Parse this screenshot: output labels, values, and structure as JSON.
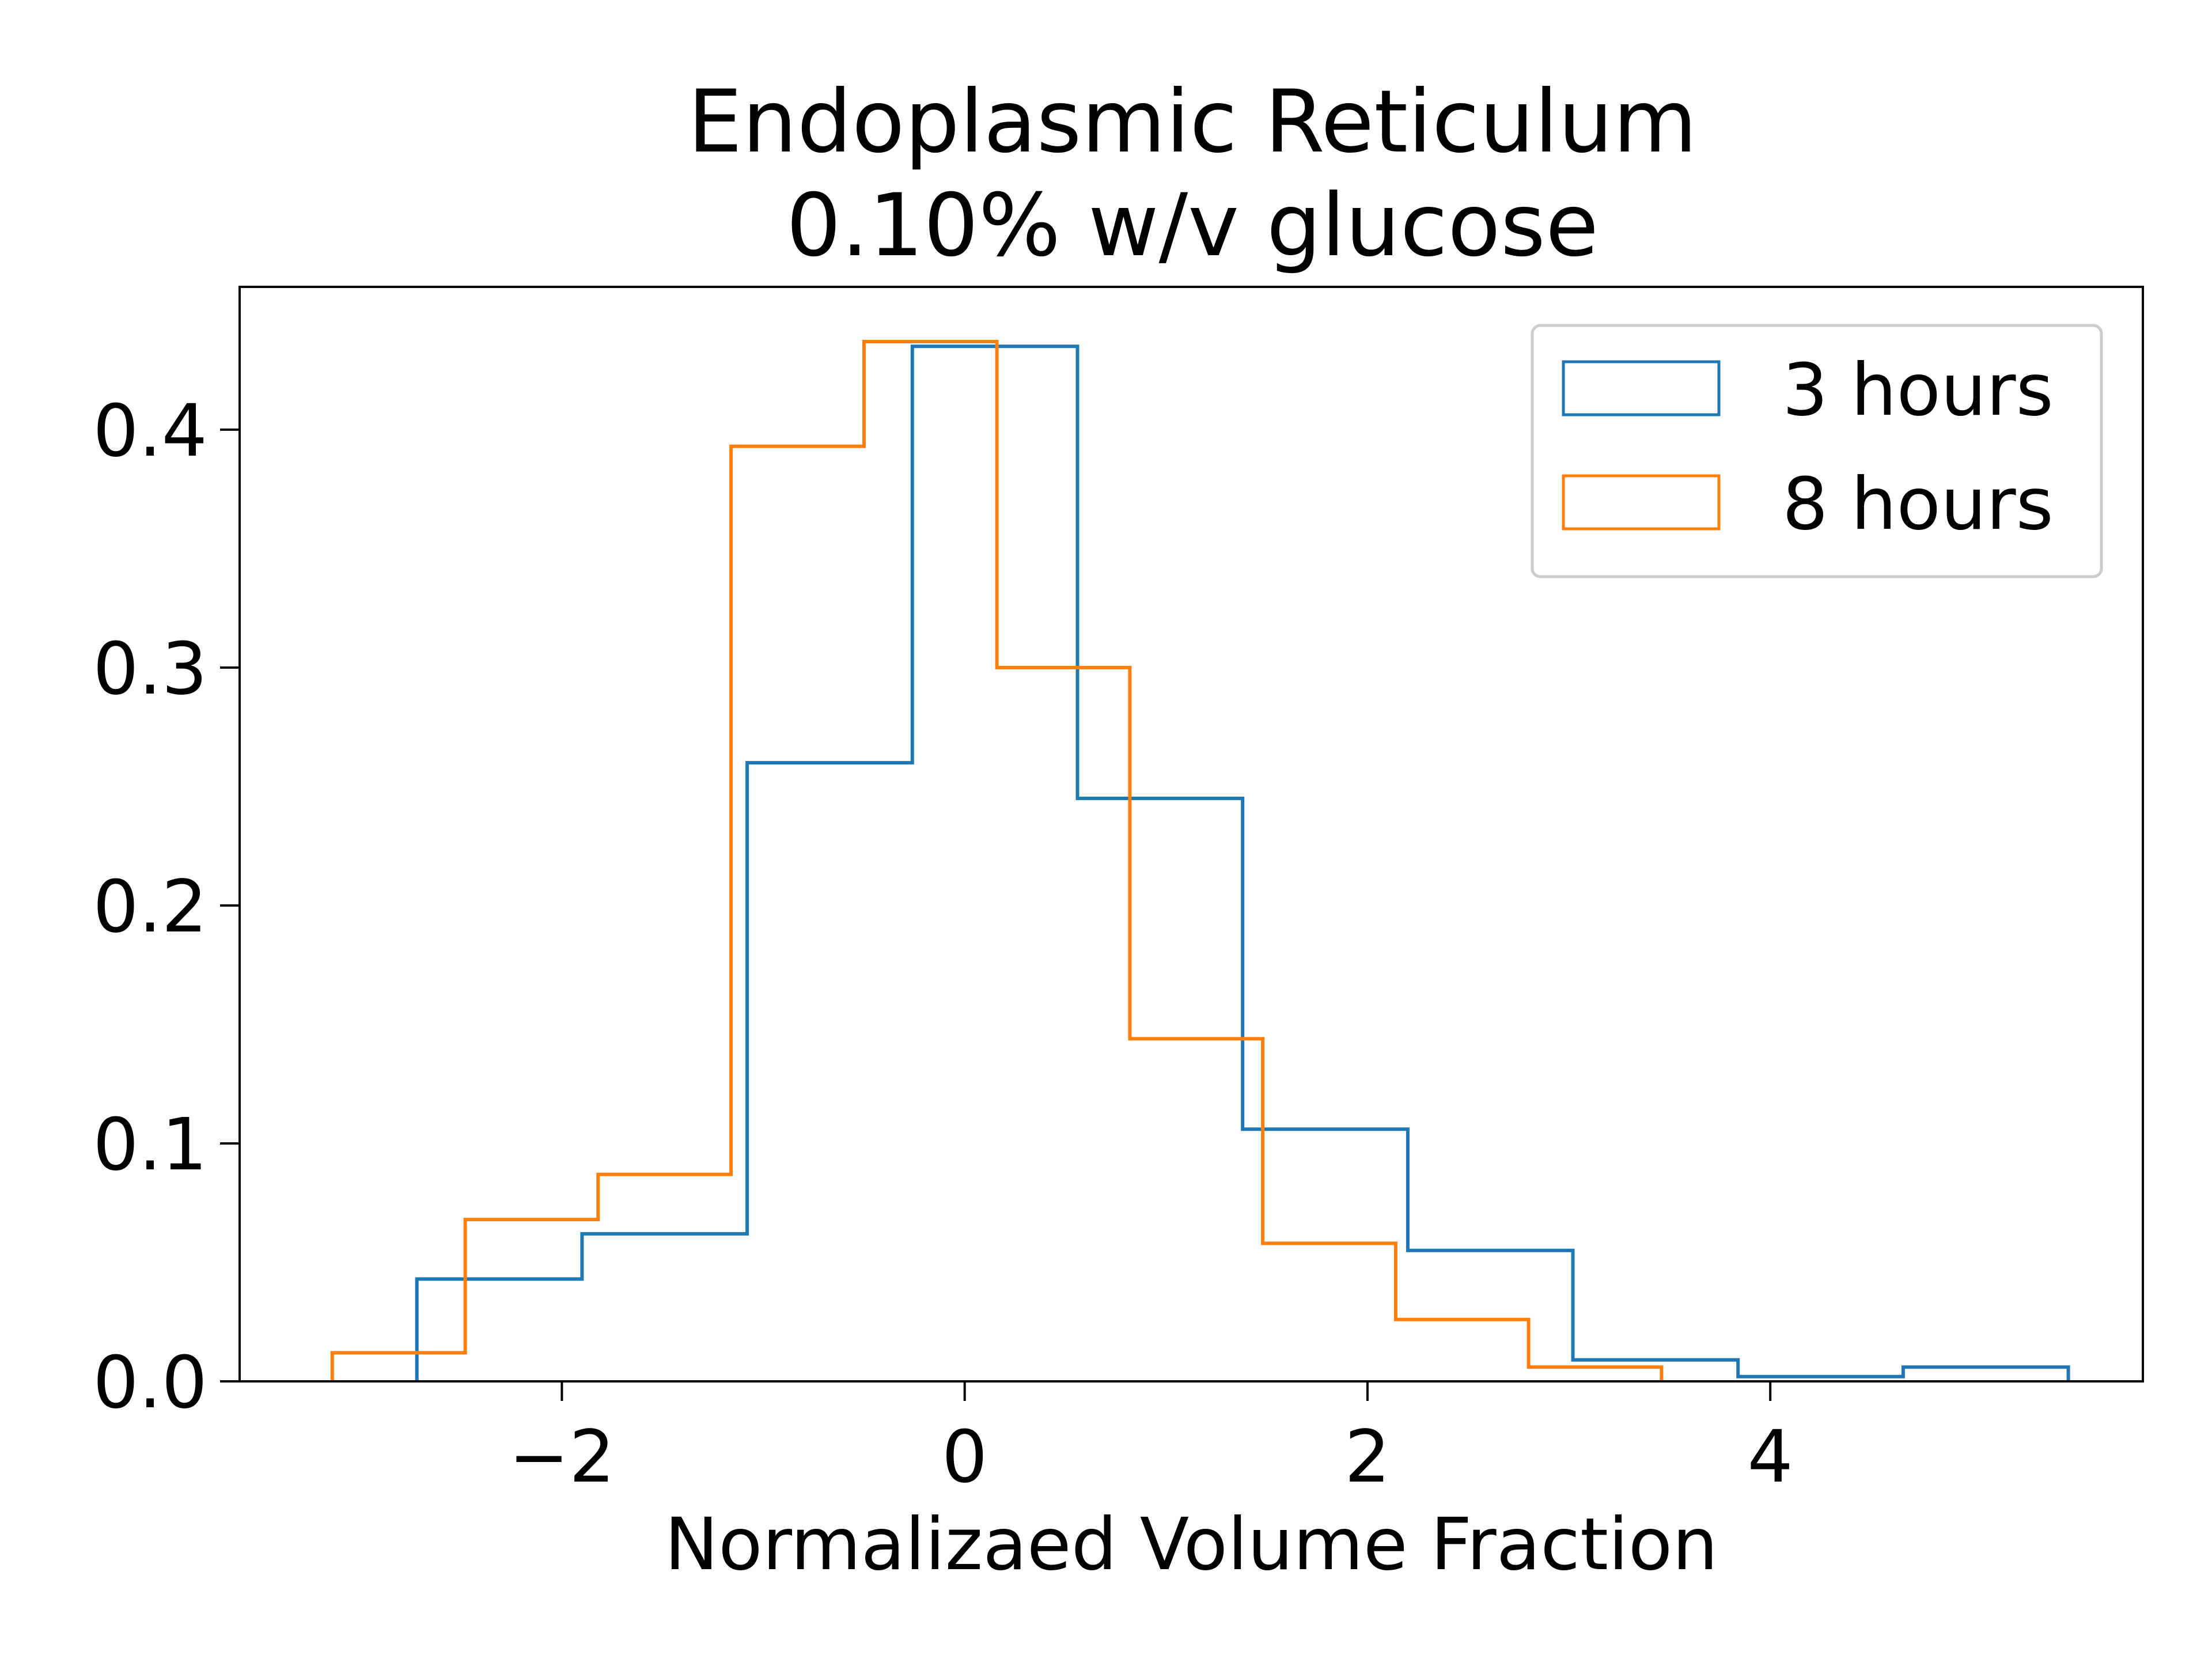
{
  "chart_data": {
    "type": "histogram",
    "title_lines": [
      "Endoplasmic Reticulum",
      "0.10% w/v glucose"
    ],
    "xlabel": "Normalizaed Volume Fraction",
    "ylabel": "",
    "xlim": [
      -3.6,
      5.85
    ],
    "ylim": [
      0,
      0.46
    ],
    "x_ticks": [
      {
        "value": -2,
        "label": "−2"
      },
      {
        "value": 0,
        "label": "0"
      },
      {
        "value": 2,
        "label": "2"
      },
      {
        "value": 4,
        "label": "4"
      }
    ],
    "y_ticks": [
      {
        "value": 0.0,
        "label": "0.0"
      },
      {
        "value": 0.1,
        "label": "0.1"
      },
      {
        "value": 0.2,
        "label": "0.2"
      },
      {
        "value": 0.3,
        "label": "0.3"
      },
      {
        "value": 0.4,
        "label": "0.4"
      }
    ],
    "grid": false,
    "legend_position": "top-right",
    "series": [
      {
        "name": "3 hours",
        "color": "#1f77b4",
        "bin_edges": [
          -2.72,
          -1.9,
          -1.08,
          -0.26,
          0.56,
          1.38,
          2.2,
          3.02,
          3.84,
          4.66,
          5.48
        ],
        "values": [
          0.043,
          0.062,
          0.26,
          0.435,
          0.245,
          0.106,
          0.055,
          0.009,
          0.002,
          0.006
        ]
      },
      {
        "name": "8 hours",
        "color": "#ff7f0e",
        "bin_edges": [
          -3.14,
          -2.48,
          -1.82,
          -1.16,
          -0.5,
          0.16,
          0.82,
          1.48,
          2.14,
          2.8,
          3.46
        ],
        "values": [
          0.012,
          0.068,
          0.087,
          0.393,
          0.437,
          0.3,
          0.144,
          0.058,
          0.026,
          0.006
        ]
      }
    ]
  }
}
